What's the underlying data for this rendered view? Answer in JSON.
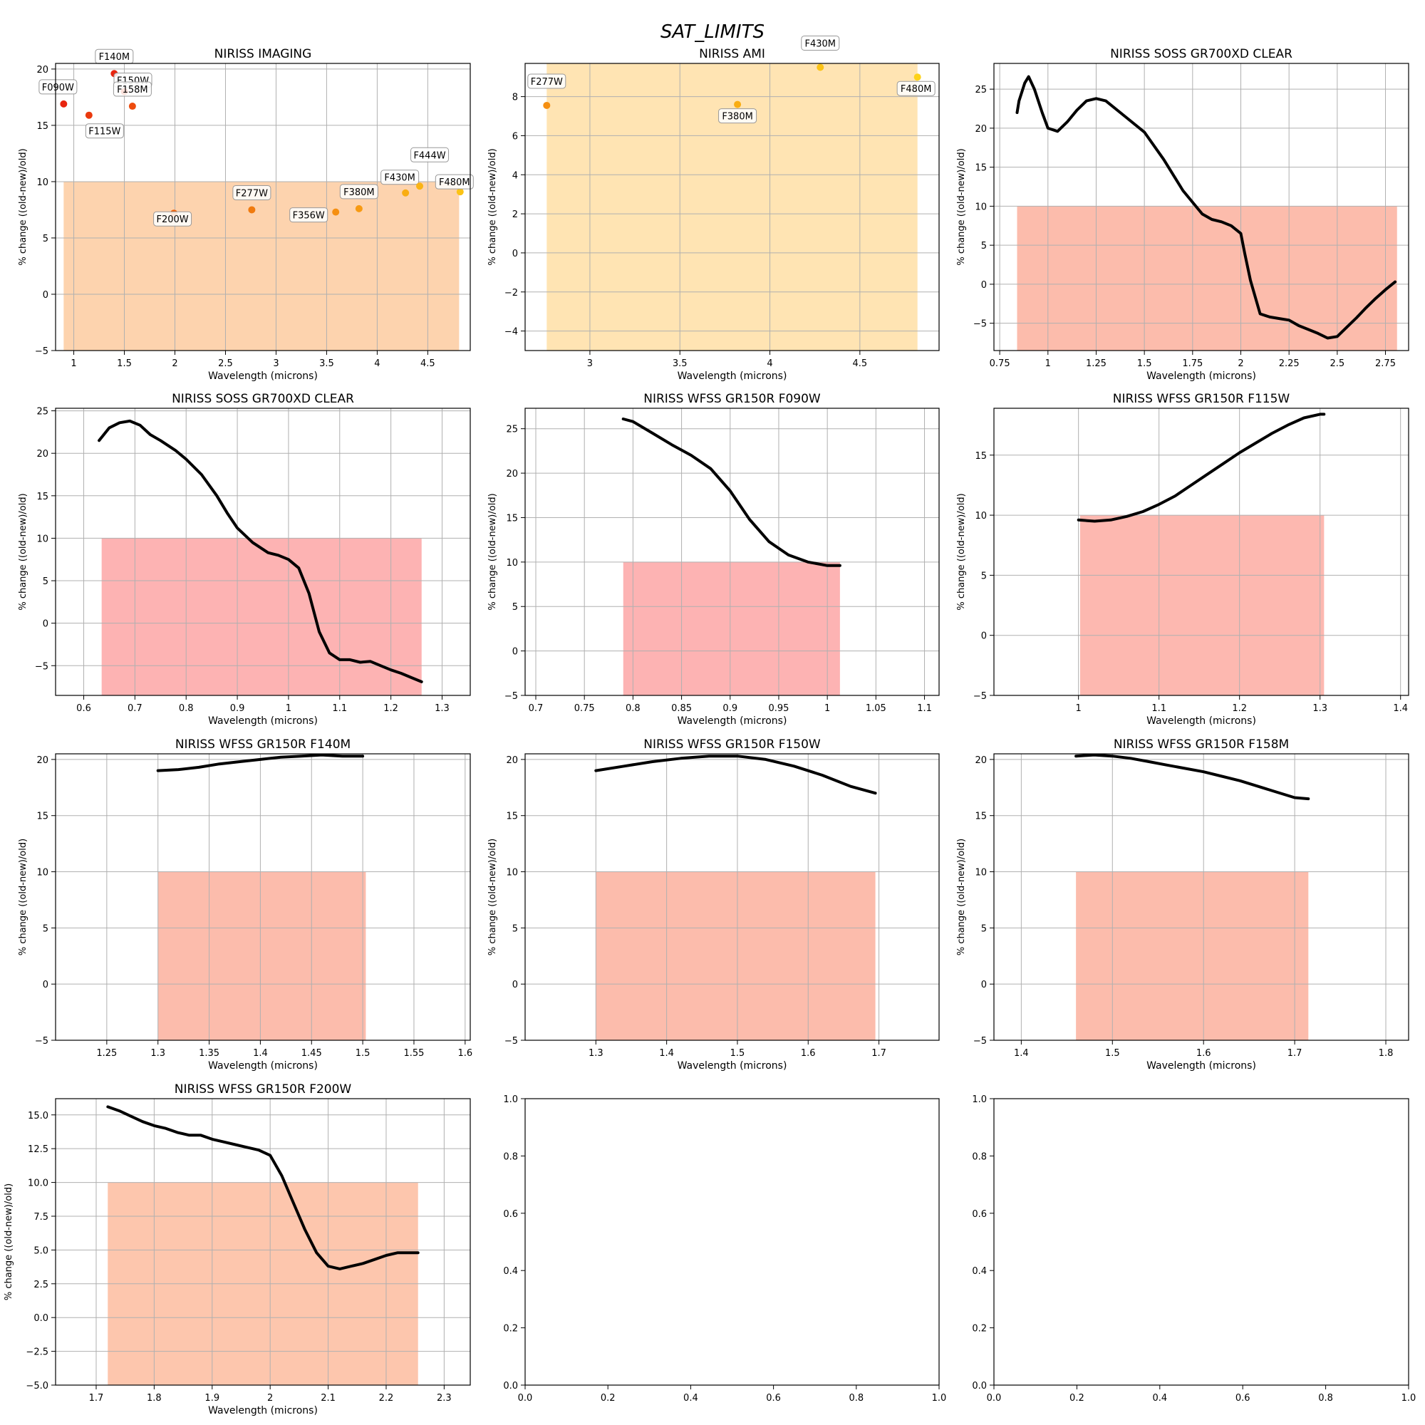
{
  "figure": {
    "suptitle": "SAT_LIMITS"
  },
  "chart_data": [
    {
      "type": "scatter",
      "title": "NIRISS IMAGING",
      "xlabel": "Wavelength (microns)",
      "ylabel": "% change ((old-new)/old)",
      "xlim": [
        0.82,
        4.92
      ],
      "ylim": [
        -5,
        20.5
      ],
      "xticks": [
        1,
        1.5,
        2,
        2.5,
        3,
        3.5,
        4,
        4.5
      ],
      "xtick_labels": [
        "1",
        "1.5",
        "2",
        "2.5",
        "3",
        "3.5",
        "4",
        "4.5"
      ],
      "yticks": [
        -5,
        0,
        5,
        10,
        15,
        20
      ],
      "ytick_labels": [
        "−5",
        "0",
        "5",
        "10",
        "15",
        "20"
      ],
      "grid": true,
      "band": {
        "x": [
          0.9,
          4.81
        ],
        "y": [
          -5,
          10
        ],
        "color": "#fdd3ae"
      },
      "points": [
        {
          "label": "F090W",
          "x": 0.9,
          "y": 16.9,
          "color": "#e8250f"
        },
        {
          "label": "F115W",
          "x": 1.15,
          "y": 15.9,
          "color": "#ea3a0e"
        },
        {
          "label": "F140M",
          "x": 1.4,
          "y": 19.6,
          "color": "#e8250f"
        },
        {
          "label": "F150W",
          "x": 1.5,
          "y": 18.0,
          "color": "#ea3a0e"
        },
        {
          "label": "F158M",
          "x": 1.58,
          "y": 16.7,
          "color": "#ed4b0e"
        },
        {
          "label": "F200W",
          "x": 1.99,
          "y": 7.2,
          "color": "#f1640c"
        },
        {
          "label": "F277W",
          "x": 2.76,
          "y": 7.5,
          "color": "#f07a0e"
        },
        {
          "label": "F356W",
          "x": 3.59,
          "y": 7.3,
          "color": "#f58f11"
        },
        {
          "label": "F380M",
          "x": 3.82,
          "y": 7.6,
          "color": "#f79a12"
        },
        {
          "label": "F430M",
          "x": 4.28,
          "y": 9.0,
          "color": "#f9ad12"
        },
        {
          "label": "F444W",
          "x": 4.42,
          "y": 9.6,
          "color": "#fab414"
        },
        {
          "label": "F480M",
          "x": 4.82,
          "y": 9.1,
          "color": "#fbc316"
        }
      ]
    },
    {
      "type": "scatter",
      "title": "NIRISS AMI",
      "xlabel": "Wavelength (microns)",
      "ylabel": "% change ((old-new)/old)",
      "xlim": [
        2.64,
        4.94
      ],
      "ylim": [
        -5,
        9.7
      ],
      "xticks": [
        3,
        3.5,
        4,
        4.5
      ],
      "xtick_labels": [
        "3",
        "3.5",
        "4",
        "4.5"
      ],
      "yticks": [
        -4,
        -2,
        0,
        2,
        4,
        6,
        8
      ],
      "ytick_labels": [
        "−4",
        "−2",
        "0",
        "2",
        "4",
        "6",
        "8"
      ],
      "grid": true,
      "band": {
        "x": [
          2.76,
          4.82
        ],
        "y": [
          -5,
          10
        ],
        "color": "#ffe4b3"
      },
      "points": [
        {
          "label": "F277W",
          "x": 2.76,
          "y": 7.55,
          "color": "#f58f11"
        },
        {
          "label": "F380M",
          "x": 3.82,
          "y": 7.6,
          "color": "#f9ad12"
        },
        {
          "label": "F430M",
          "x": 4.28,
          "y": 9.5,
          "color": "#fbc316"
        },
        {
          "label": "F480M",
          "x": 4.82,
          "y": 9.0,
          "color": "#fdd21a"
        }
      ]
    },
    {
      "type": "line",
      "title": "NIRISS SOSS GR700XD CLEAR",
      "xlabel": "Wavelength (microns)",
      "ylabel": "% change ((old-new)/old)",
      "xlim": [
        0.72,
        2.87
      ],
      "ylim": [
        -8.5,
        28.3
      ],
      "xticks": [
        0.75,
        1,
        1.25,
        1.5,
        1.75,
        2,
        2.25,
        2.5,
        2.75
      ],
      "xtick_labels": [
        "0.75",
        "1",
        "1.25",
        "1.5",
        "1.75",
        "2",
        "2.25",
        "2.5",
        "2.75"
      ],
      "yticks": [
        -5,
        0,
        5,
        10,
        15,
        20,
        25
      ],
      "ytick_labels": [
        "−5",
        "0",
        "5",
        "10",
        "15",
        "20",
        "25"
      ],
      "grid": true,
      "band": {
        "x": [
          0.84,
          2.81
        ],
        "y": [
          -8.5,
          10
        ],
        "color": "#fcbcac"
      },
      "x": [
        0.84,
        0.85,
        0.88,
        0.9,
        0.93,
        0.97,
        1.0,
        1.05,
        1.1,
        1.15,
        1.2,
        1.25,
        1.3,
        1.4,
        1.5,
        1.6,
        1.7,
        1.8,
        1.85,
        1.9,
        1.95,
        2.0,
        2.02,
        2.05,
        2.1,
        2.15,
        2.2,
        2.25,
        2.3,
        2.35,
        2.4,
        2.45,
        2.5,
        2.55,
        2.6,
        2.65,
        2.7,
        2.75,
        2.8
      ],
      "y": [
        22.0,
        23.5,
        25.8,
        26.6,
        25.0,
        22.0,
        20.0,
        19.6,
        20.8,
        22.3,
        23.5,
        23.8,
        23.5,
        21.5,
        19.5,
        16.0,
        12.0,
        9.0,
        8.3,
        8.0,
        7.5,
        6.5,
        4.0,
        0.5,
        -3.8,
        -4.2,
        -4.4,
        -4.6,
        -5.3,
        -5.8,
        -6.3,
        -6.9,
        -6.7,
        -5.5,
        -4.3,
        -3.0,
        -1.8,
        -0.7,
        0.3
      ]
    },
    {
      "type": "line",
      "title": "NIRISS SOSS GR700XD CLEAR",
      "xlabel": "Wavelength (microns)",
      "ylabel": "% change ((old-new)/old)",
      "xlim": [
        0.545,
        1.355
      ],
      "ylim": [
        -8.5,
        25.3
      ],
      "xticks": [
        0.6,
        0.7,
        0.8,
        0.9,
        1,
        1.1,
        1.2,
        1.3
      ],
      "xtick_labels": [
        "0.6",
        "0.7",
        "0.8",
        "0.9",
        "1",
        "1.1",
        "1.2",
        "1.3"
      ],
      "yticks": [
        -5,
        0,
        5,
        10,
        15,
        20,
        25
      ],
      "ytick_labels": [
        "−5",
        "0",
        "5",
        "10",
        "15",
        "20",
        "25"
      ],
      "grid": true,
      "band": {
        "x": [
          0.635,
          1.26
        ],
        "y": [
          -8.5,
          10
        ],
        "color": "#fdb3b3"
      },
      "x": [
        0.63,
        0.65,
        0.67,
        0.69,
        0.71,
        0.73,
        0.75,
        0.78,
        0.8,
        0.83,
        0.86,
        0.88,
        0.9,
        0.93,
        0.96,
        0.98,
        1.0,
        1.02,
        1.04,
        1.06,
        1.08,
        1.1,
        1.12,
        1.14,
        1.16,
        1.18,
        1.2,
        1.22,
        1.24,
        1.26
      ],
      "y": [
        21.5,
        23.0,
        23.6,
        23.8,
        23.3,
        22.2,
        21.5,
        20.3,
        19.3,
        17.5,
        15.0,
        13.0,
        11.2,
        9.5,
        8.3,
        8.0,
        7.5,
        6.5,
        3.5,
        -1.0,
        -3.5,
        -4.3,
        -4.3,
        -4.6,
        -4.5,
        -5.0,
        -5.5,
        -5.9,
        -6.4,
        -6.9
      ]
    },
    {
      "type": "line",
      "title": "NIRISS WFSS GR150R F090W",
      "xlabel": "Wavelength (microns)",
      "ylabel": "% change ((old-new)/old)",
      "xlim": [
        0.689,
        1.115
      ],
      "ylim": [
        -5,
        27.3
      ],
      "xticks": [
        0.7,
        0.75,
        0.8,
        0.85,
        0.9,
        0.95,
        1,
        1.05,
        1.1
      ],
      "xtick_labels": [
        "0.7",
        "0.75",
        "0.8",
        "0.85",
        "0.9",
        "0.95",
        "1",
        "1.05",
        "1.1"
      ],
      "yticks": [
        -5,
        0,
        5,
        10,
        15,
        20,
        25
      ],
      "ytick_labels": [
        "−5",
        "0",
        "5",
        "10",
        "15",
        "20",
        "25"
      ],
      "grid": true,
      "band": {
        "x": [
          0.79,
          1.013
        ],
        "y": [
          -5,
          10
        ],
        "color": "#fdb3b3"
      },
      "x": [
        0.79,
        0.8,
        0.82,
        0.84,
        0.86,
        0.88,
        0.9,
        0.92,
        0.94,
        0.96,
        0.98,
        1.0,
        1.013
      ],
      "y": [
        26.1,
        25.8,
        24.5,
        23.2,
        22.0,
        20.5,
        18.0,
        14.8,
        12.3,
        10.8,
        10.0,
        9.6,
        9.6
      ]
    },
    {
      "type": "line",
      "title": "NIRISS WFSS GR150R F115W",
      "xlabel": "Wavelength (microns)",
      "ylabel": "% change ((old-new)/old)",
      "xlim": [
        0.895,
        1.41
      ],
      "ylim": [
        -5,
        18.9
      ],
      "xticks": [
        1,
        1.1,
        1.2,
        1.3,
        1.4
      ],
      "xtick_labels": [
        "1",
        "1.1",
        "1.2",
        "1.3",
        "1.4"
      ],
      "yticks": [
        -5,
        0,
        5,
        10,
        15
      ],
      "ytick_labels": [
        "−5",
        "0",
        "5",
        "10",
        "15"
      ],
      "grid": true,
      "band": {
        "x": [
          1.002,
          1.305
        ],
        "y": [
          -5,
          10
        ],
        "color": "#fdb8b0"
      },
      "x": [
        1.0,
        1.02,
        1.04,
        1.06,
        1.08,
        1.1,
        1.12,
        1.14,
        1.16,
        1.18,
        1.2,
        1.22,
        1.24,
        1.26,
        1.28,
        1.3,
        1.305
      ],
      "y": [
        9.6,
        9.5,
        9.6,
        9.9,
        10.3,
        10.9,
        11.6,
        12.5,
        13.4,
        14.3,
        15.2,
        16.0,
        16.8,
        17.5,
        18.1,
        18.4,
        18.4
      ]
    },
    {
      "type": "line",
      "title": "NIRISS WFSS GR150R F140M",
      "xlabel": "Wavelength (microns)",
      "ylabel": "% change ((old-new)/old)",
      "xlim": [
        1.2,
        1.605
      ],
      "ylim": [
        -5,
        20.5
      ],
      "xticks": [
        1.25,
        1.3,
        1.35,
        1.4,
        1.45,
        1.5,
        1.55,
        1.6
      ],
      "xtick_labels": [
        "1.25",
        "1.3",
        "1.35",
        "1.4",
        "1.45",
        "1.5",
        "1.55",
        "1.6"
      ],
      "yticks": [
        -5,
        0,
        5,
        10,
        15,
        20
      ],
      "ytick_labels": [
        "−5",
        "0",
        "5",
        "10",
        "15",
        "20"
      ],
      "grid": true,
      "band": {
        "x": [
          1.3,
          1.503
        ],
        "y": [
          -5,
          10
        ],
        "color": "#fcbcac"
      },
      "x": [
        1.3,
        1.32,
        1.34,
        1.36,
        1.38,
        1.4,
        1.42,
        1.44,
        1.46,
        1.48,
        1.5
      ],
      "y": [
        19.0,
        19.1,
        19.3,
        19.6,
        19.8,
        20.0,
        20.2,
        20.3,
        20.4,
        20.3,
        20.3
      ]
    },
    {
      "type": "line",
      "title": "NIRISS WFSS GR150R F150W",
      "xlabel": "Wavelength (microns)",
      "ylabel": "% change ((old-new)/old)",
      "xlim": [
        1.2,
        1.785
      ],
      "ylim": [
        -5,
        20.5
      ],
      "xticks": [
        1.3,
        1.4,
        1.5,
        1.6,
        1.7
      ],
      "xtick_labels": [
        "1.3",
        "1.4",
        "1.5",
        "1.6",
        "1.7"
      ],
      "yticks": [
        -5,
        0,
        5,
        10,
        15,
        20
      ],
      "ytick_labels": [
        "−5",
        "0",
        "5",
        "10",
        "15",
        "20"
      ],
      "grid": true,
      "band": {
        "x": [
          1.3,
          1.695
        ],
        "y": [
          -5,
          10
        ],
        "color": "#fcbcac"
      },
      "x": [
        1.3,
        1.34,
        1.38,
        1.42,
        1.46,
        1.5,
        1.54,
        1.58,
        1.62,
        1.66,
        1.695
      ],
      "y": [
        19.0,
        19.4,
        19.8,
        20.1,
        20.3,
        20.3,
        20.0,
        19.4,
        18.6,
        17.6,
        17.0
      ]
    },
    {
      "type": "line",
      "title": "NIRISS WFSS GR150R F158M",
      "xlabel": "Wavelength (microns)",
      "ylabel": "% change ((old-new)/old)",
      "xlim": [
        1.37,
        1.825
      ],
      "ylim": [
        -5,
        20.5
      ],
      "xticks": [
        1.4,
        1.5,
        1.6,
        1.7,
        1.8
      ],
      "xtick_labels": [
        "1.4",
        "1.5",
        "1.6",
        "1.7",
        "1.8"
      ],
      "yticks": [
        -5,
        0,
        5,
        10,
        15,
        20
      ],
      "ytick_labels": [
        "−5",
        "0",
        "5",
        "10",
        "15",
        "20"
      ],
      "grid": true,
      "band": {
        "x": [
          1.46,
          1.715
        ],
        "y": [
          -5,
          10
        ],
        "color": "#fcbcac"
      },
      "x": [
        1.46,
        1.48,
        1.5,
        1.52,
        1.54,
        1.56,
        1.58,
        1.6,
        1.62,
        1.64,
        1.66,
        1.68,
        1.7,
        1.715
      ],
      "y": [
        20.3,
        20.4,
        20.3,
        20.1,
        19.8,
        19.5,
        19.2,
        18.9,
        18.5,
        18.1,
        17.6,
        17.1,
        16.6,
        16.5
      ]
    },
    {
      "type": "line",
      "title": "NIRISS WFSS GR150R F200W",
      "xlabel": "Wavelength (microns)",
      "ylabel": "% change ((old-new)/old)",
      "xlim": [
        1.63,
        2.345
      ],
      "ylim": [
        -5,
        16.2
      ],
      "xticks": [
        1.7,
        1.8,
        1.9,
        2,
        2.1,
        2.2,
        2.3
      ],
      "xtick_labels": [
        "1.7",
        "1.8",
        "1.9",
        "2",
        "2.1",
        "2.2",
        "2.3"
      ],
      "yticks": [
        -5,
        -2.5,
        0,
        2.5,
        5,
        7.5,
        10,
        12.5,
        15
      ],
      "ytick_labels": [
        "−5.0",
        "−2.5",
        "0.0",
        "2.5",
        "5.0",
        "7.5",
        "10.0",
        "12.5",
        "15.0"
      ],
      "grid": true,
      "band": {
        "x": [
          1.72,
          2.255
        ],
        "y": [
          -5,
          10
        ],
        "color": "#fdc6ad"
      },
      "x": [
        1.72,
        1.74,
        1.76,
        1.78,
        1.8,
        1.82,
        1.84,
        1.86,
        1.88,
        1.9,
        1.92,
        1.94,
        1.96,
        1.98,
        2.0,
        2.02,
        2.04,
        2.06,
        2.08,
        2.1,
        2.12,
        2.14,
        2.16,
        2.18,
        2.2,
        2.22,
        2.24,
        2.255
      ],
      "y": [
        15.6,
        15.3,
        14.9,
        14.5,
        14.2,
        14.0,
        13.7,
        13.5,
        13.5,
        13.2,
        13.0,
        12.8,
        12.6,
        12.4,
        12.0,
        10.5,
        8.5,
        6.5,
        4.8,
        3.8,
        3.6,
        3.8,
        4.0,
        4.3,
        4.6,
        4.8,
        4.8,
        4.8
      ]
    },
    {
      "type": "line",
      "title": "",
      "xlabel": "",
      "ylabel": "",
      "xlim": [
        0,
        1
      ],
      "ylim": [
        0,
        1
      ],
      "xticks": [
        0,
        0.2,
        0.4,
        0.6,
        0.8,
        1
      ],
      "xtick_labels": [
        "0.0",
        "0.2",
        "0.4",
        "0.6",
        "0.8",
        "1.0"
      ],
      "yticks": [
        0,
        0.2,
        0.4,
        0.6,
        0.8,
        1
      ],
      "ytick_labels": [
        "0.0",
        "0.2",
        "0.4",
        "0.6",
        "0.8",
        "1.0"
      ],
      "grid": false
    },
    {
      "type": "line",
      "title": "",
      "xlabel": "",
      "ylabel": "",
      "xlim": [
        0,
        1
      ],
      "ylim": [
        0,
        1
      ],
      "xticks": [
        0,
        0.2,
        0.4,
        0.6,
        0.8,
        1
      ],
      "xtick_labels": [
        "0.0",
        "0.2",
        "0.4",
        "0.6",
        "0.8",
        "1.0"
      ],
      "yticks": [
        0,
        0.2,
        0.4,
        0.6,
        0.8,
        1
      ],
      "ytick_labels": [
        "0.0",
        "0.2",
        "0.4",
        "0.6",
        "0.8",
        "1.0"
      ],
      "grid": false
    }
  ]
}
